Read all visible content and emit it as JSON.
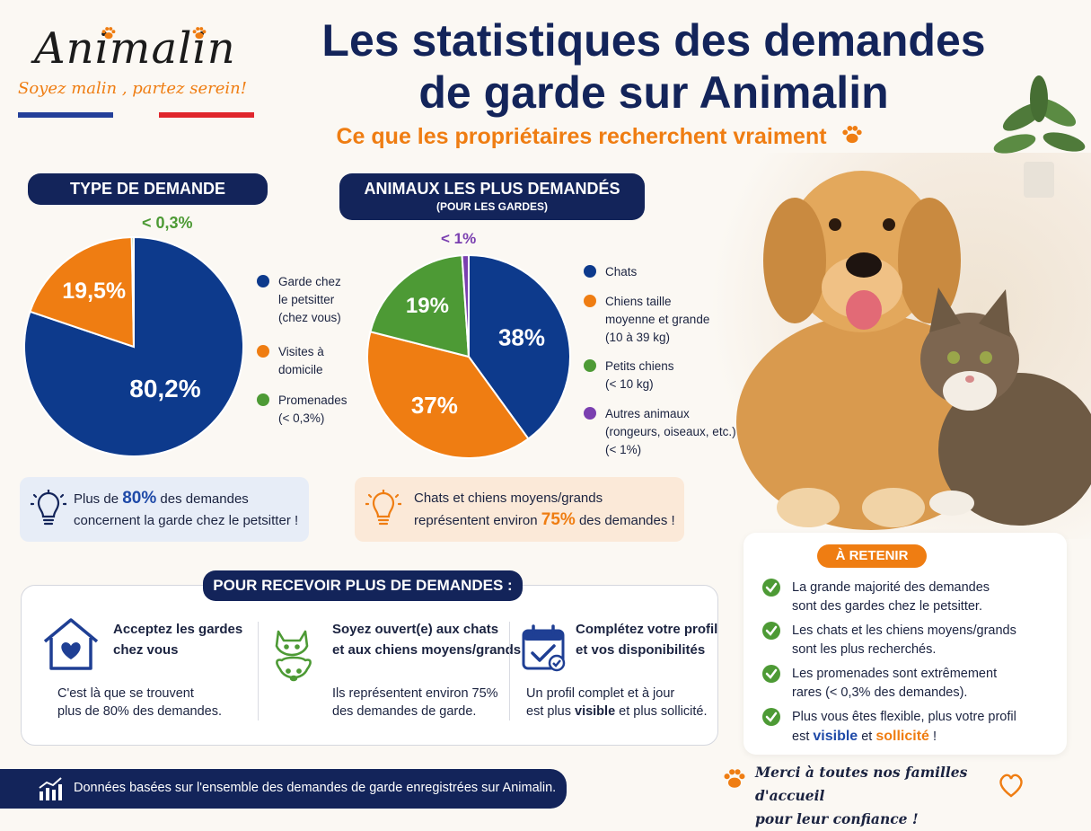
{
  "logo": {
    "name": "Animalin",
    "tagline": "Soyez malin , partez serein!"
  },
  "title": {
    "line1": "Les statistiques des demandes",
    "line2": "de garde sur Animalin"
  },
  "subtitle": "Ce que les propriétaires recherchent vraiment",
  "colors": {
    "navy": "#13245a",
    "blue": "#0d3a8c",
    "orange": "#ef7d12",
    "green": "#4d9a35",
    "purple": "#7a3fb0"
  },
  "chart_data": [
    {
      "type": "pie",
      "title": "TYPE DE DEMANDE",
      "categories": [
        "Garde chez le petsitter (chez vous)",
        "Visites à domicile",
        "Promenades (< 0,3%)"
      ],
      "values": [
        80.2,
        19.5,
        0.3
      ],
      "labels": [
        "80,2%",
        "19,5%",
        "< 0,3%"
      ],
      "colors": [
        "#0d3a8c",
        "#ef7d12",
        "#4d9a35"
      ],
      "legend": "right"
    },
    {
      "type": "pie",
      "title": "ANIMAUX LES PLUS DEMANDÉS",
      "subtitle": "(POUR LES GARDES)",
      "categories": [
        "Chats",
        "Chiens taille moyenne et grande (10 à 39 kg)",
        "Petits chiens (< 10 kg)",
        "Autres animaux (rongeurs, oiseaux, etc.) (< 1%)"
      ],
      "values": [
        38,
        37,
        19,
        1
      ],
      "labels": [
        "38%",
        "37%",
        "19%",
        "< 1%"
      ],
      "colors": [
        "#0d3a8c",
        "#ef7d12",
        "#4d9a35",
        "#7a3fb0"
      ],
      "legend": "right"
    }
  ],
  "legend1": [
    {
      "lines": [
        "Garde chez",
        "le petsitter",
        "(chez vous)"
      ]
    },
    {
      "lines": [
        "Visites à",
        "domicile"
      ]
    },
    {
      "lines": [
        "Promenades",
        "(< 0,3%)"
      ]
    }
  ],
  "legend2": [
    {
      "lines": [
        "Chats"
      ]
    },
    {
      "lines": [
        "Chiens taille",
        "moyenne et grande",
        "(10 à 39 kg)"
      ]
    },
    {
      "lines": [
        "Petits chiens",
        "(< 10 kg)"
      ]
    },
    {
      "lines": [
        "Autres animaux",
        "(rongeurs, oiseaux, etc.)",
        "(< 1%)"
      ]
    }
  ],
  "info1": {
    "pre": "Plus de ",
    "value": "80%",
    "post": " des demandes",
    "line2": "concernent la garde chez le petsitter !"
  },
  "info2": {
    "line1": "Chats et chiens moyens/grands",
    "pre": "représentent environ ",
    "value": "75%",
    "post": " des demandes !"
  },
  "reco": {
    "header": "POUR RECEVOIR PLUS DE DEMANDES :",
    "items": [
      {
        "title1": "Acceptez les gardes",
        "title2": "chez vous",
        "text1": "C'est là que se trouvent",
        "text2": "plus de 80% des demandes."
      },
      {
        "title1": "Soyez ouvert(e) aux chats",
        "title2": "et aux chiens moyens/grands",
        "text1": "Ils représentent environ 75%",
        "text2": "des demandes de garde."
      },
      {
        "title1": "Complétez votre profil",
        "title2": "et vos disponibilités",
        "text1": "Un profil complet et à jour",
        "text2a": "est plus ",
        "text2b": "visible",
        "text2c": " et plus sollicité."
      }
    ]
  },
  "retenir": {
    "header": "À RETENIR",
    "items": [
      {
        "l1": "La grande majorité des demandes",
        "l2": "sont des gardes chez le petsitter."
      },
      {
        "l1": "Les chats et les chiens moyens/grands",
        "l2": "sont les plus recherchés."
      },
      {
        "l1": "Les promenades sont extrêmement",
        "l2": "rares (< 0,3% des demandes)."
      },
      {
        "l1": "Plus vous êtes flexible, plus votre profil",
        "l2a": "est ",
        "l2b": "visible",
        "l2c": " et ",
        "l2d": "sollicité",
        "l2e": " !"
      }
    ]
  },
  "footer": "Données basées sur l'ensemble des demandes de garde enregistrées sur Animalin.",
  "thanks": {
    "line1": "Merci à toutes nos familles d'accueil",
    "line2": "pour leur confiance !"
  }
}
